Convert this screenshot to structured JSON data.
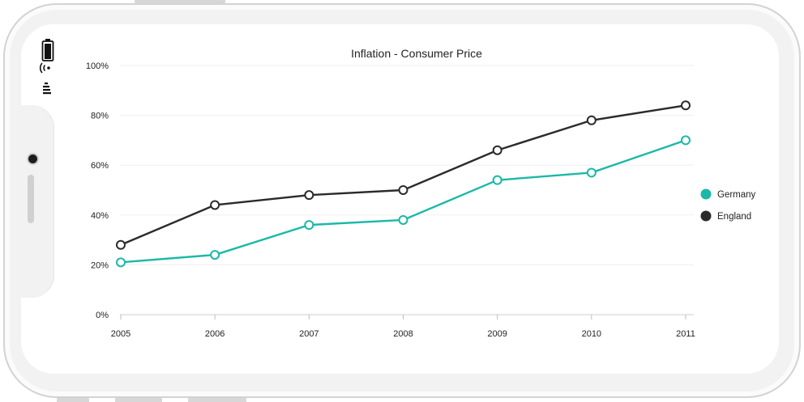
{
  "device": {
    "icons": [
      "battery-icon",
      "wifi-icon",
      "signal-icon"
    ]
  },
  "chart_data": {
    "type": "line",
    "title": "Inflation - Consumer Price",
    "x": [
      "2005",
      "2006",
      "2007",
      "2008",
      "2009",
      "2010",
      "2011"
    ],
    "series": [
      {
        "name": "Germany",
        "color": "#1bb8a8",
        "values": [
          21,
          24,
          36,
          38,
          54,
          57,
          70
        ]
      },
      {
        "name": "England",
        "color": "#2b2b2b",
        "values": [
          28,
          44,
          48,
          50,
          66,
          78,
          84
        ]
      }
    ],
    "y_ticks": [
      "0%",
      "20%",
      "40%",
      "60%",
      "80%",
      "100%"
    ],
    "ylim": [
      0,
      100
    ],
    "y_unit": "%",
    "grid": true,
    "legend": "right",
    "markers": "hollow-circle"
  }
}
